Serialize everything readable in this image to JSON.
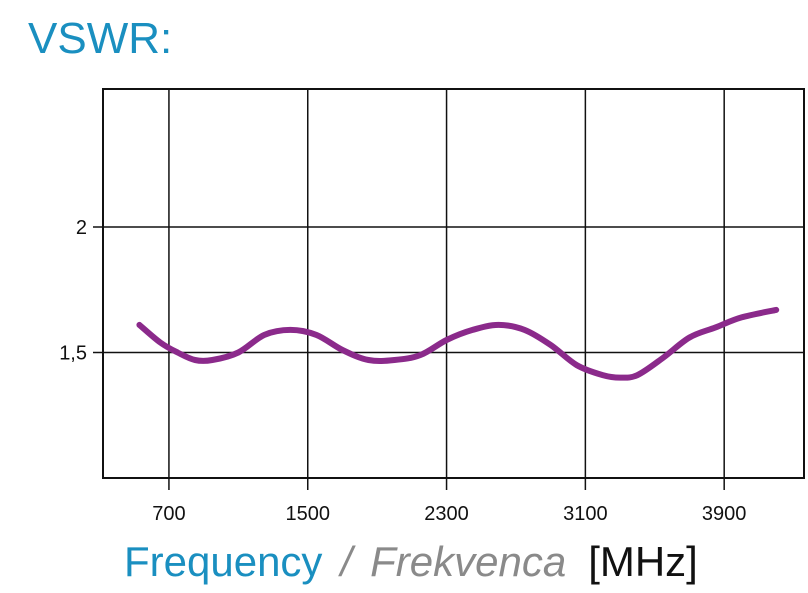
{
  "chart_data": {
    "type": "line",
    "title": "VSWR:",
    "xlabel_en": "Frequency",
    "xlabel_separator": "/",
    "xlabel_sl": "Frekvenca",
    "xlabel_unit": "[MHz]",
    "ylabel": "",
    "xlim": [
      320,
      4360
    ],
    "ylim": [
      1.0,
      2.55
    ],
    "grid": true,
    "x_ticks": [
      700,
      1500,
      2300,
      3100,
      3900
    ],
    "x_tick_labels": [
      "700",
      "1500",
      "2300",
      "3100",
      "3900"
    ],
    "y_ticks": [
      1.5,
      2.0
    ],
    "y_tick_labels": [
      "1,5",
      "2"
    ],
    "series": [
      {
        "color": "#8b2a8b",
        "x": [
          530,
          650,
          750,
          850,
          950,
          1100,
          1250,
          1400,
          1550,
          1700,
          1850,
          2000,
          2150,
          2300,
          2450,
          2600,
          2750,
          2900,
          3050,
          3200,
          3300,
          3400,
          3550,
          3700,
          3850,
          4000,
          4200
        ],
        "y": [
          1.61,
          1.54,
          1.5,
          1.47,
          1.47,
          1.5,
          1.57,
          1.59,
          1.57,
          1.51,
          1.47,
          1.47,
          1.49,
          1.55,
          1.59,
          1.61,
          1.59,
          1.53,
          1.45,
          1.41,
          1.4,
          1.41,
          1.48,
          1.56,
          1.6,
          1.64,
          1.67
        ]
      }
    ]
  }
}
